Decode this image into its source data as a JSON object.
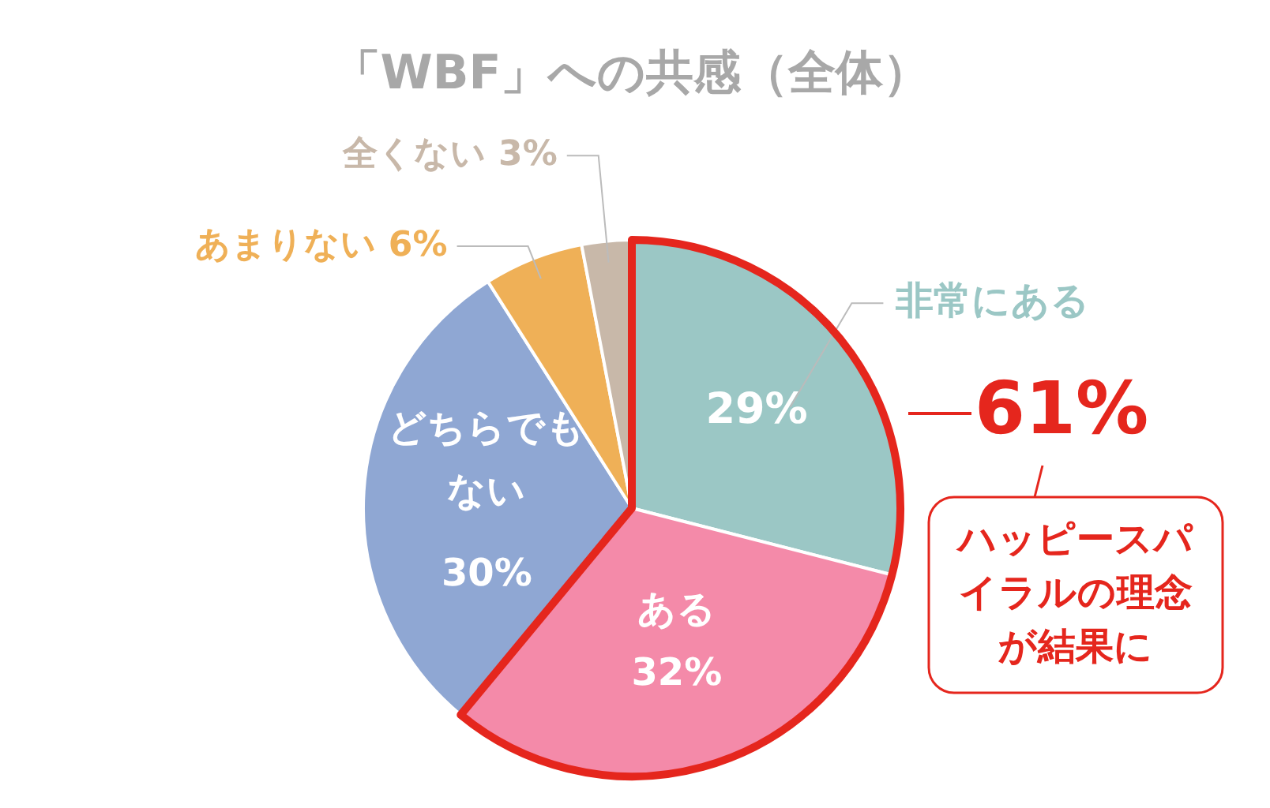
{
  "chart_data": {
    "type": "pie",
    "title": "「WBF」への共感（全体）",
    "categories": [
      "非常にある",
      "ある",
      "どちらでもない",
      "あまりない",
      "全くない"
    ],
    "values": [
      29,
      32,
      30,
      6,
      3
    ],
    "colors": [
      "#9bc7c5",
      "#f48aa9",
      "#8fa7d3",
      "#efb057",
      "#c8b8a9"
    ],
    "value_labels": [
      "29%",
      "32%",
      "30%",
      "6%",
      "3%"
    ],
    "annotations": [
      "61%",
      "ハッピースパイラルの理念が結果に"
    ]
  }
}
